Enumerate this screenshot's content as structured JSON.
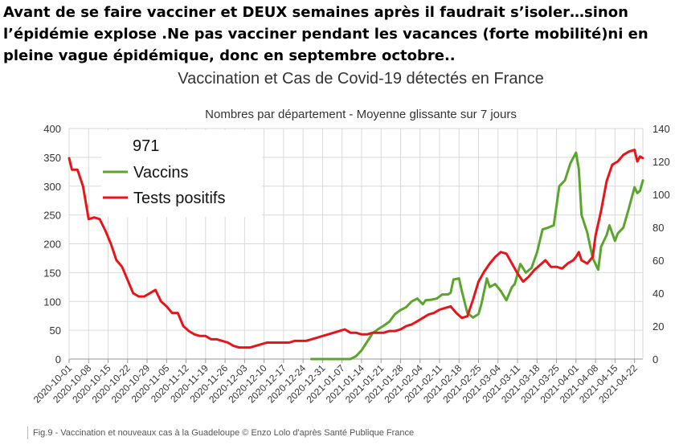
{
  "headline": "Avant de se faire vacciner et DEUX semaines après il faudrait s’isoler…sinon l’épidémie explose .Ne pas vacciner pendant les vacances (forte mobilité)ni en pleine vague épidémique, donc en septembre octobre..",
  "caption": "Fig.9 - Vaccination et nouveaux cas à la Guadeloupe © Enzo Lolo d'après Santé Publique France",
  "chart_data": {
    "type": "line",
    "title": "Vaccination et Cas de Covid-19 détectés en France",
    "subtitle": "Nombres par département - Moyenne glissante sur 7 jours",
    "legend_title": "971",
    "legend_position": "top-left",
    "grid": true,
    "ylim_left": [
      0,
      400
    ],
    "yticks_left": [
      0,
      50,
      100,
      150,
      200,
      250,
      300,
      350,
      400
    ],
    "ylim_right": [
      0,
      140
    ],
    "yticks_right": [
      0,
      20,
      40,
      60,
      80,
      100,
      120,
      140
    ],
    "x_start": "2020-10-01",
    "x_end": "2021-04-25",
    "x_ticks": [
      "2020-10-01",
      "2020-10-08",
      "2020-10-15",
      "2020-10-22",
      "2020-10-29",
      "2020-11-05",
      "2020-11-12",
      "2020-11-19",
      "2020-11-26",
      "2020-12-03",
      "2020-12-10",
      "2020-12-17",
      "2020-12-24",
      "2020-12-31",
      "2021-01-07",
      "2021-01-14",
      "2021-01-21",
      "2021-01-28",
      "2021-02-04",
      "2021-02-11",
      "2021-02-18",
      "2021-02-25",
      "2021-03-04",
      "2021-03-11",
      "2021-03-18",
      "2021-03-25",
      "2021-04-01",
      "2021-04-08",
      "2021-04-15",
      "2021-04-22"
    ],
    "series": [
      {
        "name": "Vaccins",
        "color": "#5ba52c",
        "axis": "left",
        "points": [
          [
            "2020-12-27",
            0
          ],
          [
            "2021-01-10",
            0
          ],
          [
            "2021-01-12",
            5
          ],
          [
            "2021-01-14",
            15
          ],
          [
            "2021-01-16",
            30
          ],
          [
            "2021-01-18",
            45
          ],
          [
            "2021-01-20",
            52
          ],
          [
            "2021-01-22",
            58
          ],
          [
            "2021-01-24",
            65
          ],
          [
            "2021-01-26",
            78
          ],
          [
            "2021-01-28",
            85
          ],
          [
            "2021-01-30",
            90
          ],
          [
            "2021-02-01",
            100
          ],
          [
            "2021-02-03",
            105
          ],
          [
            "2021-02-05",
            95
          ],
          [
            "2021-02-06",
            102
          ],
          [
            "2021-02-08",
            103
          ],
          [
            "2021-02-10",
            105
          ],
          [
            "2021-02-12",
            112
          ],
          [
            "2021-02-14",
            112
          ],
          [
            "2021-02-15",
            115
          ],
          [
            "2021-02-16",
            138
          ],
          [
            "2021-02-18",
            140
          ],
          [
            "2021-02-19",
            118
          ],
          [
            "2021-02-21",
            80
          ],
          [
            "2021-02-23",
            72
          ],
          [
            "2021-02-25",
            78
          ],
          [
            "2021-02-26",
            95
          ],
          [
            "2021-02-28",
            140
          ],
          [
            "2021-03-01",
            125
          ],
          [
            "2021-03-03",
            130
          ],
          [
            "2021-03-05",
            118
          ],
          [
            "2021-03-07",
            102
          ],
          [
            "2021-03-09",
            125
          ],
          [
            "2021-03-10",
            130
          ],
          [
            "2021-03-12",
            165
          ],
          [
            "2021-03-14",
            150
          ],
          [
            "2021-03-16",
            158
          ],
          [
            "2021-03-18",
            185
          ],
          [
            "2021-03-20",
            225
          ],
          [
            "2021-03-22",
            228
          ],
          [
            "2021-03-24",
            232
          ],
          [
            "2021-03-26",
            300
          ],
          [
            "2021-03-28",
            310
          ],
          [
            "2021-03-30",
            340
          ],
          [
            "2021-04-01",
            358
          ],
          [
            "2021-04-02",
            330
          ],
          [
            "2021-04-03",
            250
          ],
          [
            "2021-04-05",
            220
          ],
          [
            "2021-04-07",
            175
          ],
          [
            "2021-04-09",
            155
          ],
          [
            "2021-04-10",
            195
          ],
          [
            "2021-04-12",
            215
          ],
          [
            "2021-04-13",
            232
          ],
          [
            "2021-04-15",
            205
          ],
          [
            "2021-04-16",
            218
          ],
          [
            "2021-04-18",
            228
          ],
          [
            "2021-04-20",
            262
          ],
          [
            "2021-04-22",
            298
          ],
          [
            "2021-04-23",
            288
          ],
          [
            "2021-04-24",
            292
          ],
          [
            "2021-04-25",
            310
          ]
        ]
      },
      {
        "name": "Tests positifs",
        "color": "#e8141a",
        "axis": "right",
        "points": [
          [
            "2020-10-01",
            122
          ],
          [
            "2020-10-02",
            115
          ],
          [
            "2020-10-04",
            115
          ],
          [
            "2020-10-06",
            105
          ],
          [
            "2020-10-08",
            85
          ],
          [
            "2020-10-10",
            86
          ],
          [
            "2020-10-12",
            85
          ],
          [
            "2020-10-14",
            78
          ],
          [
            "2020-10-16",
            70
          ],
          [
            "2020-10-18",
            60
          ],
          [
            "2020-10-20",
            56
          ],
          [
            "2020-10-22",
            48
          ],
          [
            "2020-10-24",
            40
          ],
          [
            "2020-10-26",
            38
          ],
          [
            "2020-10-28",
            38
          ],
          [
            "2020-10-30",
            40
          ],
          [
            "2020-11-01",
            42
          ],
          [
            "2020-11-03",
            35
          ],
          [
            "2020-11-05",
            32
          ],
          [
            "2020-11-07",
            28
          ],
          [
            "2020-11-09",
            28
          ],
          [
            "2020-11-11",
            20
          ],
          [
            "2020-11-13",
            17
          ],
          [
            "2020-11-15",
            15
          ],
          [
            "2020-11-17",
            14
          ],
          [
            "2020-11-19",
            14
          ],
          [
            "2020-11-21",
            12
          ],
          [
            "2020-11-23",
            12
          ],
          [
            "2020-11-25",
            11
          ],
          [
            "2020-11-27",
            10
          ],
          [
            "2020-11-29",
            8
          ],
          [
            "2020-12-01",
            7
          ],
          [
            "2020-12-03",
            7
          ],
          [
            "2020-12-05",
            7
          ],
          [
            "2020-12-07",
            8
          ],
          [
            "2020-12-09",
            9
          ],
          [
            "2020-12-11",
            10
          ],
          [
            "2020-12-13",
            10
          ],
          [
            "2020-12-15",
            10
          ],
          [
            "2020-12-17",
            10
          ],
          [
            "2020-12-19",
            10
          ],
          [
            "2020-12-21",
            11
          ],
          [
            "2020-12-23",
            11
          ],
          [
            "2020-12-25",
            11
          ],
          [
            "2020-12-27",
            12
          ],
          [
            "2020-12-29",
            13
          ],
          [
            "2020-12-31",
            14
          ],
          [
            "2021-01-02",
            15
          ],
          [
            "2021-01-04",
            16
          ],
          [
            "2021-01-06",
            17
          ],
          [
            "2021-01-08",
            18
          ],
          [
            "2021-01-10",
            16
          ],
          [
            "2021-01-12",
            16
          ],
          [
            "2021-01-14",
            15
          ],
          [
            "2021-01-16",
            15
          ],
          [
            "2021-01-18",
            16
          ],
          [
            "2021-01-20",
            16
          ],
          [
            "2021-01-22",
            16
          ],
          [
            "2021-01-24",
            17
          ],
          [
            "2021-01-26",
            17
          ],
          [
            "2021-01-28",
            18
          ],
          [
            "2021-01-30",
            20
          ],
          [
            "2021-02-01",
            21
          ],
          [
            "2021-02-03",
            23
          ],
          [
            "2021-02-05",
            25
          ],
          [
            "2021-02-07",
            27
          ],
          [
            "2021-02-09",
            28
          ],
          [
            "2021-02-11",
            30
          ],
          [
            "2021-02-13",
            31
          ],
          [
            "2021-02-15",
            32
          ],
          [
            "2021-02-17",
            28
          ],
          [
            "2021-02-19",
            25
          ],
          [
            "2021-02-21",
            26
          ],
          [
            "2021-02-23",
            36
          ],
          [
            "2021-02-25",
            47
          ],
          [
            "2021-02-27",
            53
          ],
          [
            "2021-03-01",
            58
          ],
          [
            "2021-03-03",
            62
          ],
          [
            "2021-03-05",
            65
          ],
          [
            "2021-03-07",
            64
          ],
          [
            "2021-03-09",
            58
          ],
          [
            "2021-03-11",
            52
          ],
          [
            "2021-03-13",
            47
          ],
          [
            "2021-03-15",
            50
          ],
          [
            "2021-03-17",
            54
          ],
          [
            "2021-03-19",
            57
          ],
          [
            "2021-03-21",
            60
          ],
          [
            "2021-03-23",
            56
          ],
          [
            "2021-03-25",
            56
          ],
          [
            "2021-03-27",
            55
          ],
          [
            "2021-03-29",
            58
          ],
          [
            "2021-03-31",
            60
          ],
          [
            "2021-04-01",
            62
          ],
          [
            "2021-04-02",
            65
          ],
          [
            "2021-04-03",
            60
          ],
          [
            "2021-04-05",
            58
          ],
          [
            "2021-04-07",
            62
          ],
          [
            "2021-04-08",
            75
          ],
          [
            "2021-04-10",
            90
          ],
          [
            "2021-04-12",
            108
          ],
          [
            "2021-04-14",
            118
          ],
          [
            "2021-04-16",
            120
          ],
          [
            "2021-04-18",
            124
          ],
          [
            "2021-04-20",
            126
          ],
          [
            "2021-04-22",
            127
          ],
          [
            "2021-04-23",
            120
          ],
          [
            "2021-04-24",
            123
          ],
          [
            "2021-04-25",
            122
          ]
        ]
      }
    ]
  }
}
